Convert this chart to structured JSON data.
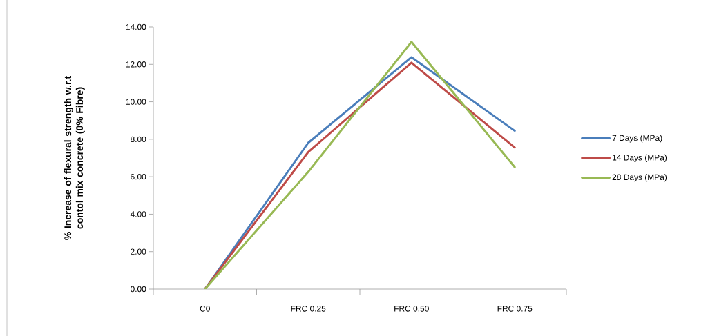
{
  "chart_data": {
    "type": "line",
    "ylabel": "% Increase of flexural strength w.r.t contol mix concrete (0% Fibre)",
    "categories": [
      "C0",
      "FRC 0.25",
      "FRC 0.50",
      "FRC 0.75"
    ],
    "series": [
      {
        "name": "7 Days (MPa)",
        "color": "#4a7ebb",
        "values": [
          0,
          7.81,
          12.38,
          8.45
        ]
      },
      {
        "name": "14 Days (MPa)",
        "color": "#be4b48",
        "values": [
          0,
          7.32,
          12.09,
          7.56
        ]
      },
      {
        "name": "28 Days (MPa)",
        "color": "#98b954",
        "values": [
          0,
          6.26,
          13.2,
          6.51
        ]
      }
    ],
    "ylim": [
      0,
      14
    ],
    "yticks": [
      {
        "value": 0,
        "label": "0.00"
      },
      {
        "value": 2,
        "label": "2.00"
      },
      {
        "value": 4,
        "label": "4.00"
      },
      {
        "value": 6,
        "label": "6.00"
      },
      {
        "value": 8,
        "label": "8.00"
      },
      {
        "value": 10,
        "label": "10.00"
      },
      {
        "value": 12,
        "label": "12.00"
      },
      {
        "value": 14,
        "label": "14.00"
      }
    ],
    "grid": false,
    "legend": "right",
    "marker": "none",
    "line_style": "solid"
  }
}
